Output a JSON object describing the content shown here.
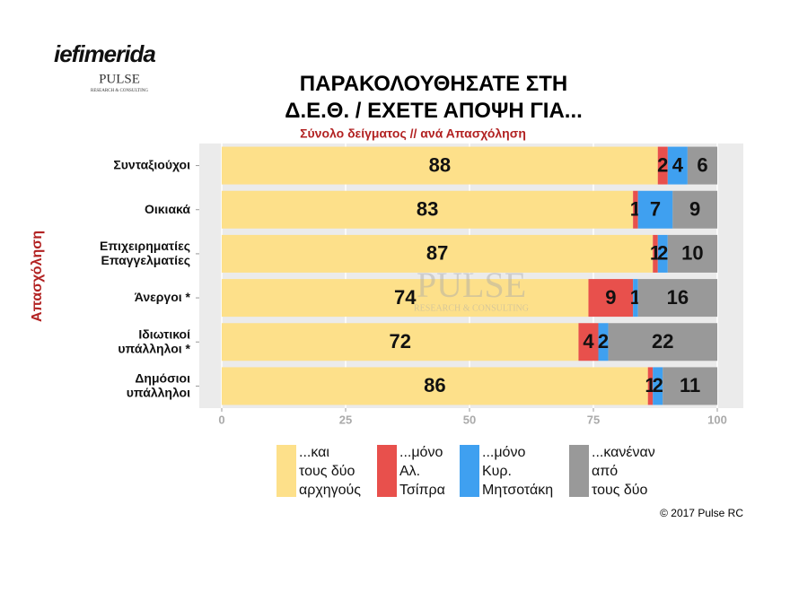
{
  "chart_data": {
    "type": "stacked-bar-horizontal",
    "title": "ΠΑΡΑΚΟΛΟΥΘΗΣΑΤΕ ΣΤΗ\nΔ.Ε.Θ. / ΕΧΕΤΕ ΑΠΟΨΗ ΓΙΑ...",
    "subtitle": "Σύνολο δείγματος // ανά Απασχόληση",
    "y_label": "Απασχόληση",
    "logo": "iefimerida",
    "brand": "PULSE",
    "brand_sub": "RESEARCH & CONSULTING",
    "credit": "© 2017 Pulse RC",
    "categories": [
      "Συνταξιούχοι",
      "Οικιακά",
      "Επιχειρηματίες\nΕπαγγελματίες",
      "Άνεργοι *",
      "Ιδιωτικοί\nυπάλληλοι *",
      "Δημόσιοι\nυπάλληλοι"
    ],
    "series": [
      {
        "name": "...και\nτους δύο\nαρχηγούς",
        "color": "#fde08a",
        "values": [
          88,
          83,
          87,
          74,
          72,
          86
        ]
      },
      {
        "name": "...μόνο\nΑλ.\nΤσίπρα",
        "color": "#e8504c",
        "values": [
          2,
          1,
          1,
          9,
          4,
          1
        ]
      },
      {
        "name": "...μόνο\nΚυρ.\nΜητσοτάκη",
        "color": "#3fa0f0",
        "values": [
          4,
          7,
          2,
          1,
          2,
          2
        ]
      },
      {
        "name": "...κανέναν\nαπό\nτους δύο",
        "color": "#999999",
        "values": [
          6,
          9,
          10,
          16,
          22,
          11
        ]
      }
    ],
    "xlim": [
      0,
      100
    ],
    "xticks": [
      0,
      25,
      50,
      75,
      100
    ],
    "grid": true
  }
}
